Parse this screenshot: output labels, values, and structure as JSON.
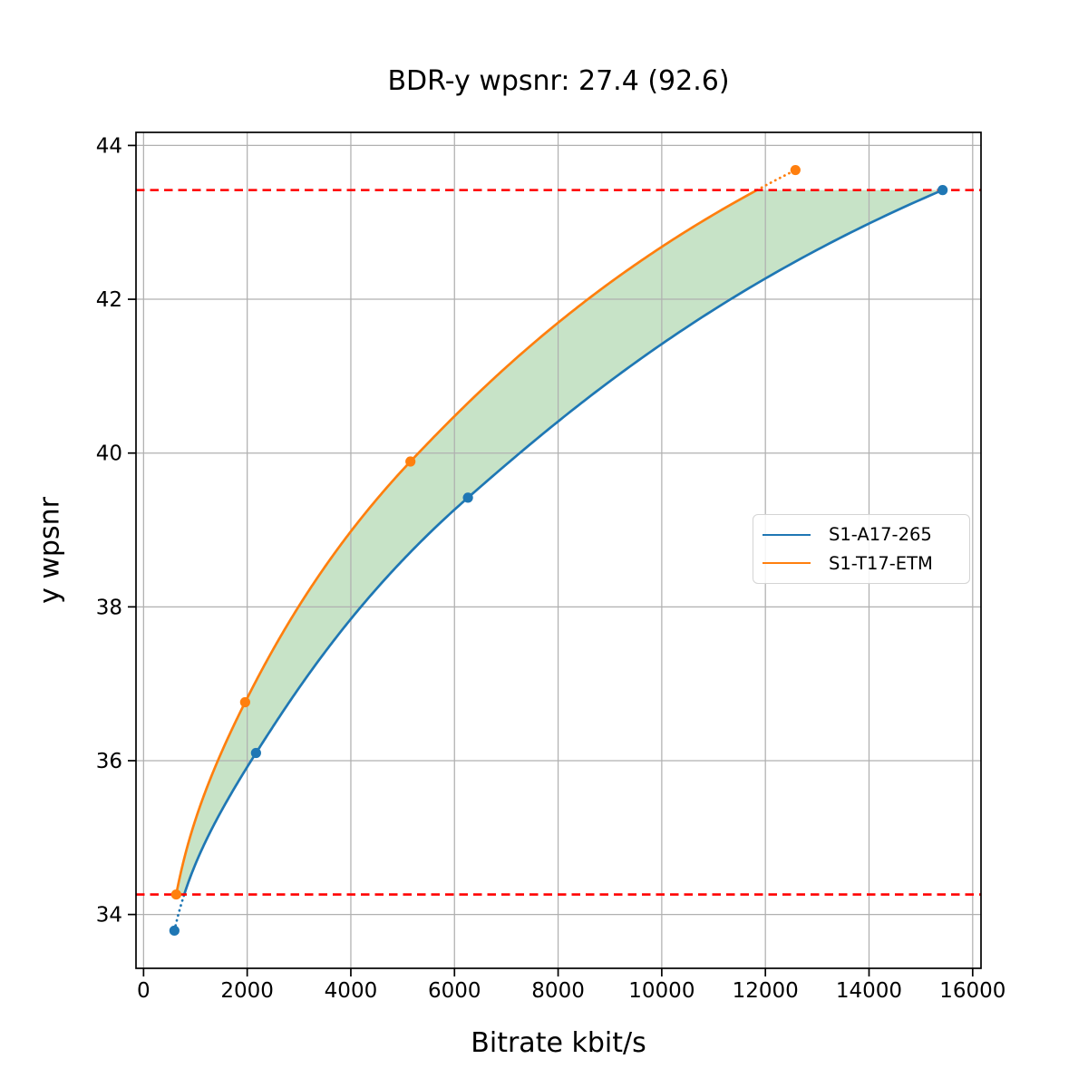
{
  "title": "BDR-y wpsnr: 27.4 (92.6)",
  "chart_data": {
    "type": "line",
    "title": "BDR-y wpsnr: 27.4 (92.6)",
    "xlabel": "Bitrate kbit/s",
    "ylabel": "y wpsnr",
    "xlim": [
      -146,
      16161
    ],
    "ylim": [
      33.3,
      44.17
    ],
    "xticks": [
      0,
      2000,
      4000,
      6000,
      8000,
      10000,
      12000,
      14000,
      16000
    ],
    "yticks": [
      34,
      36,
      38,
      40,
      42,
      44
    ],
    "grid": true,
    "legend_position": "center right",
    "series": [
      {
        "name": "S1-A17-265",
        "color": "#1f77b4",
        "x": [
          595,
          2170,
          6260,
          15420
        ],
        "y": [
          33.79,
          36.1,
          39.42,
          43.42
        ]
      },
      {
        "name": "S1-T17-ETM",
        "color": "#ff7f0e",
        "x": [
          630,
          1960,
          5150,
          12580
        ],
        "y": [
          34.26,
          36.76,
          39.89,
          43.68
        ]
      }
    ],
    "overlap_bounds": {
      "low": 34.26,
      "high": 43.42,
      "line_color": "#ff0000",
      "line_style": "dashed"
    },
    "fill_between": {
      "color": "rgba(0,128,0,0.22)",
      "between": [
        "S1-T17-ETM",
        "S1-A17-265"
      ]
    },
    "colors": {
      "grid": "#b0b0b0",
      "spine": "#000000",
      "tick_label": "#000000"
    }
  },
  "legend": {
    "entries": [
      {
        "label": "S1-A17-265"
      },
      {
        "label": "S1-T17-ETM"
      }
    ]
  }
}
